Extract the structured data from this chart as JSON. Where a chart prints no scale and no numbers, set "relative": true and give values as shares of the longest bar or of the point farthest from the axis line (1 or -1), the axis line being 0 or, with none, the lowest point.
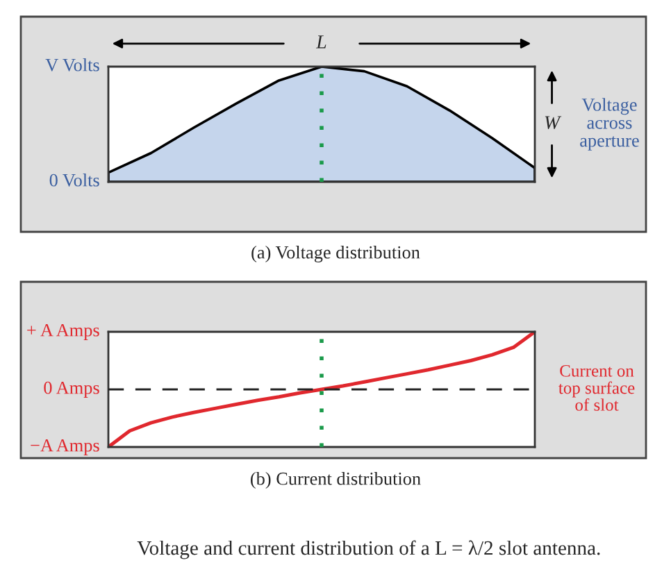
{
  "chart_data": [
    {
      "type": "area",
      "title": "(a) Voltage distribution",
      "relative": true,
      "categories": [
        null,
        null,
        null,
        null,
        null,
        null,
        null,
        null,
        null,
        null,
        null
      ],
      "series": [
        {
          "color": "#c5d5ec",
          "values": [
            0.08,
            0.25,
            0.47,
            0.68,
            0.88,
            1,
            0.96,
            0.83,
            0.62,
            0.38,
            0.12
          ]
        }
      ],
      "annotations": [
        "V Volts",
        "0 Volts",
        "L",
        "W",
        "Voltage\nacross\naperture"
      ]
    },
    {
      "type": "line",
      "title": "(b) Current distribution",
      "relative": true,
      "categories": [
        null,
        null,
        null,
        null,
        null,
        null,
        null,
        null,
        null,
        null,
        null,
        null,
        null,
        null,
        null,
        null,
        null,
        null,
        null,
        null,
        null
      ],
      "series": [
        {
          "color": "#e0282e",
          "values": [
            -1,
            -0.72,
            -0.58,
            -0.48,
            -0.4,
            -0.33,
            -0.26,
            -0.19,
            -0.13,
            -0.06,
            0,
            0.06,
            0.13,
            0.2,
            0.27,
            0.34,
            0.42,
            0.5,
            0.6,
            0.73,
            1
          ]
        }
      ],
      "ref_lines": [
        {
          "axis": "y",
          "value": 0,
          "color": "#222222",
          "line_style": "dashed"
        }
      ],
      "annotations": [
        "+ A Amps",
        "0 Amps",
        "−A Amps",
        "Current on\ntop surface\nof slot",
        "Voltage and current distribution of a L = λ/2 slot antenna."
      ]
    }
  ]
}
